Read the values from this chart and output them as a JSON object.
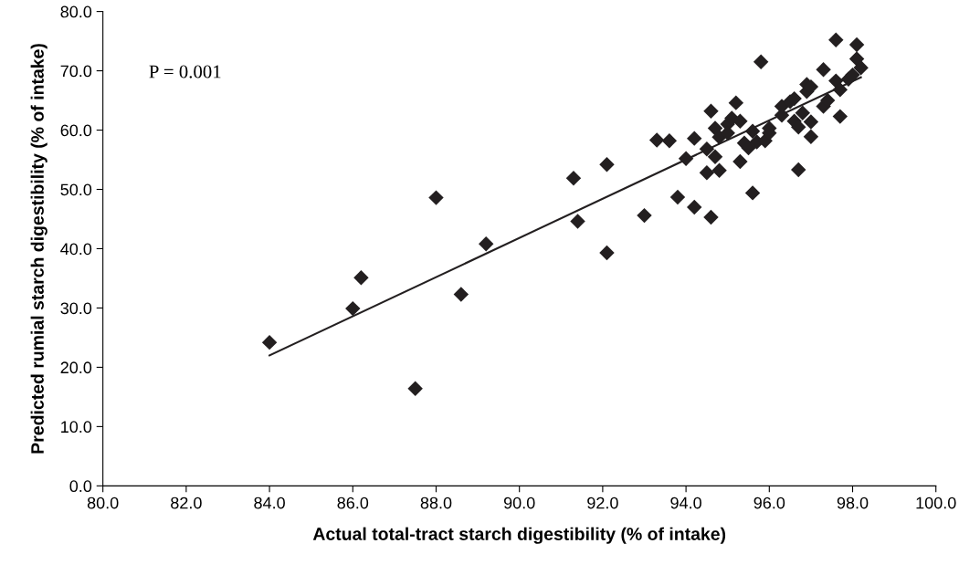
{
  "chart_data": {
    "type": "scatter",
    "xlabel": "Actual total-tract starch digestibility (% of intake)",
    "ylabel": "Predicted rumial starch digestibility (% of intake)",
    "annotations": [
      "P = 0.001"
    ],
    "grid": false,
    "legend": false,
    "xlim": [
      80,
      100
    ],
    "ylim": [
      0,
      80
    ],
    "xticks": [
      {
        "value": 80,
        "label": "80.0"
      },
      {
        "value": 82,
        "label": "82.0"
      },
      {
        "value": 84,
        "label": "84.0"
      },
      {
        "value": 86,
        "label": "86.0"
      },
      {
        "value": 88,
        "label": "88.0"
      },
      {
        "value": 90,
        "label": "90.0"
      },
      {
        "value": 92,
        "label": "92.0"
      },
      {
        "value": 94,
        "label": "94.0"
      },
      {
        "value": 96,
        "label": "96.0"
      },
      {
        "value": 98,
        "label": "98.0"
      },
      {
        "value": 100,
        "label": "100.0"
      }
    ],
    "yticks": [
      {
        "value": 0,
        "label": "0.0"
      },
      {
        "value": 10,
        "label": "10.0"
      },
      {
        "value": 20,
        "label": "20.0"
      },
      {
        "value": 30,
        "label": "30.0"
      },
      {
        "value": 40,
        "label": "40.0"
      },
      {
        "value": 50,
        "label": "50.0"
      },
      {
        "value": 60,
        "label": "60.0"
      },
      {
        "value": 70,
        "label": "70.0"
      },
      {
        "value": 80,
        "label": "80.0"
      }
    ],
    "series": [
      {
        "marker": "diamond",
        "color": "#231f20",
        "x": [
          84.0,
          86.0,
          86.2,
          87.5,
          88.0,
          88.6,
          89.2,
          91.3,
          91.4,
          92.1,
          92.1,
          93.0,
          93.3,
          93.6,
          93.8,
          94.0,
          94.2,
          94.2,
          94.5,
          94.6,
          94.6,
          94.5,
          94.7,
          94.7,
          94.8,
          94.8,
          95.0,
          95.0,
          95.1,
          95.2,
          95.3,
          95.3,
          95.4,
          95.5,
          95.6,
          95.6,
          95.7,
          95.8,
          95.9,
          96.0,
          96.0,
          96.3,
          96.3,
          96.5,
          96.6,
          96.6,
          96.7,
          96.7,
          96.8,
          96.9,
          96.9,
          97.0,
          97.0,
          97.0,
          97.3,
          97.3,
          97.4,
          97.6,
          97.6,
          97.7,
          97.7,
          97.9,
          98.1,
          98.1,
          98.2,
          98.0
        ],
        "values": [
          24.2,
          29.9,
          35.1,
          16.4,
          48.6,
          32.3,
          40.8,
          51.9,
          44.6,
          54.2,
          39.3,
          45.6,
          58.3,
          58.2,
          48.7,
          55.2,
          58.6,
          47.0,
          52.8,
          45.3,
          63.2,
          56.8,
          55.5,
          60.3,
          53.2,
          58.8,
          61.0,
          59.5,
          62.0,
          64.6,
          61.5,
          54.7,
          57.8,
          57.0,
          49.4,
          59.8,
          58.0,
          71.5,
          58.2,
          59.5,
          60.3,
          62.5,
          64.0,
          64.8,
          61.5,
          65.3,
          60.5,
          53.3,
          62.9,
          66.5,
          67.7,
          61.4,
          58.9,
          67.3,
          70.2,
          64.0,
          65.0,
          75.2,
          68.3,
          62.3,
          66.8,
          68.6,
          74.4,
          72.0,
          70.5,
          69.3
        ]
      },
      {
        "type": "line",
        "color": "#231f20",
        "x": [
          84.0,
          98.2
        ],
        "values": [
          22.0,
          68.9
        ]
      }
    ]
  }
}
